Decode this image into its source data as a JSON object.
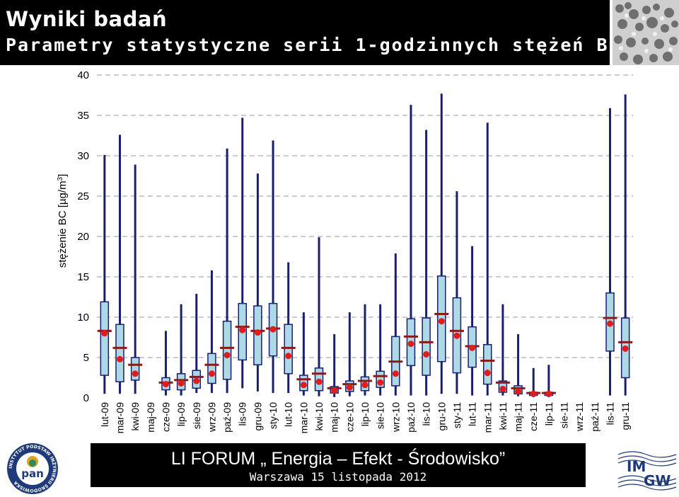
{
  "header": {
    "title": "Wyniki badań",
    "subtitle": "Parametry statystyczne serii 1-godzinnych stężeń BC"
  },
  "footer": {
    "title": "LI FORUM „ Energia – Efekt - Środowisko”",
    "subtitle": "Warszawa 15 listopada 2012"
  },
  "logos": {
    "left_ring_text": "INSTYTUT PODSTAW INŻYNIERII ŚRODOWISKA",
    "left_center_text": "pan",
    "right_text_top": "IM",
    "right_text_bottom": "GW"
  },
  "colors": {
    "box_fill": "#add8e6",
    "box_stroke": "#1a1f6e",
    "mean_line": "#8b1a1a",
    "median_dot": "#e31b1b",
    "header_bg": "#000000"
  },
  "chart_data": {
    "type": "boxplot",
    "title": "",
    "ylabel": "stężenie BC [µg/m",
    "ylabel_superscript": "3",
    "ylabel_suffix": "]",
    "ylim": [
      0,
      40
    ],
    "yticks": [
      0,
      5,
      10,
      15,
      20,
      25,
      30,
      35,
      40
    ],
    "grid": "horizontal dashed",
    "categories": [
      "lut-09",
      "mar-09",
      "kwi-09",
      "maj-09",
      "cze-09",
      "lip-09",
      "sie-09",
      "wrz-09",
      "paź-09",
      "lis-09",
      "gru-09",
      "sty-10",
      "lut-10",
      "mar-10",
      "kwi-10",
      "maj-10",
      "cze-10",
      "lip-10",
      "sie-10",
      "wrz-10",
      "paź-10",
      "lis-10",
      "gru-10",
      "sty-11",
      "lut-11",
      "mar-11",
      "kwi-11",
      "maj-11",
      "cze-11",
      "lip-11",
      "sie-11",
      "wrz-11",
      "paź-11",
      "lis-11",
      "gru-11"
    ],
    "min": [
      0.5,
      0.5,
      0.5,
      null,
      0.3,
      0.3,
      0.6,
      0.6,
      0.6,
      1.2,
      0.8,
      0.6,
      0.6,
      0.3,
      0.2,
      0.1,
      0.2,
      0.3,
      0.3,
      0.3,
      0.3,
      0.3,
      0.5,
      0.5,
      0.3,
      0.3,
      0.3,
      0.2,
      0.1,
      0.1,
      null,
      null,
      0.3,
      0.3,
      0.3
    ],
    "q1": [
      2.8,
      2.0,
      2.2,
      null,
      1.0,
      1.0,
      1.2,
      1.8,
      2.3,
      4.7,
      4.1,
      5.2,
      3.0,
      0.9,
      0.9,
      0.6,
      0.8,
      0.9,
      1.3,
      1.5,
      4.0,
      2.8,
      4.5,
      3.1,
      3.8,
      1.7,
      0.7,
      0.5,
      0.3,
      0.3,
      null,
      null,
      null,
      5.8,
      2.5
    ],
    "q3": [
      11.9,
      9.1,
      5.0,
      null,
      2.5,
      3.0,
      3.4,
      5.5,
      9.5,
      11.7,
      11.4,
      11.7,
      9.1,
      2.8,
      3.7,
      1.4,
      2.1,
      2.6,
      3.3,
      7.6,
      9.8,
      9.9,
      15.1,
      12.4,
      8.8,
      6.6,
      2.1,
      1.5,
      0.7,
      0.7,
      null,
      null,
      null,
      13.0,
      9.9
    ],
    "max": [
      30.1,
      32.6,
      28.9,
      null,
      8.3,
      11.6,
      12.9,
      15.8,
      30.9,
      34.7,
      27.8,
      31.9,
      16.8,
      10.6,
      19.9,
      7.9,
      10.6,
      11.6,
      11.6,
      17.9,
      36.3,
      33.2,
      37.7,
      25.6,
      18.8,
      34.1,
      11.6,
      7.9,
      3.7,
      4.1,
      null,
      null,
      null,
      35.9,
      37.6
    ],
    "mean": [
      8.3,
      6.2,
      4.1,
      null,
      1.9,
      2.2,
      2.6,
      4.1,
      6.2,
      8.8,
      8.3,
      8.6,
      6.2,
      2.3,
      3.0,
      1.2,
      1.7,
      2.1,
      2.7,
      4.5,
      7.6,
      6.9,
      10.4,
      8.3,
      6.4,
      4.6,
      1.9,
      1.2,
      0.6,
      0.6,
      null,
      null,
      null,
      9.9,
      6.9
    ],
    "median": [
      8.0,
      4.8,
      3.0,
      null,
      1.7,
      1.8,
      2.1,
      3.0,
      5.3,
      8.4,
      8.1,
      8.5,
      5.2,
      1.6,
      2.0,
      0.9,
      1.3,
      1.6,
      1.9,
      3.0,
      6.7,
      5.4,
      9.5,
      7.7,
      6.2,
      3.1,
      1.1,
      0.8,
      0.5,
      0.5,
      null,
      null,
      null,
      9.2,
      6.1
    ]
  }
}
